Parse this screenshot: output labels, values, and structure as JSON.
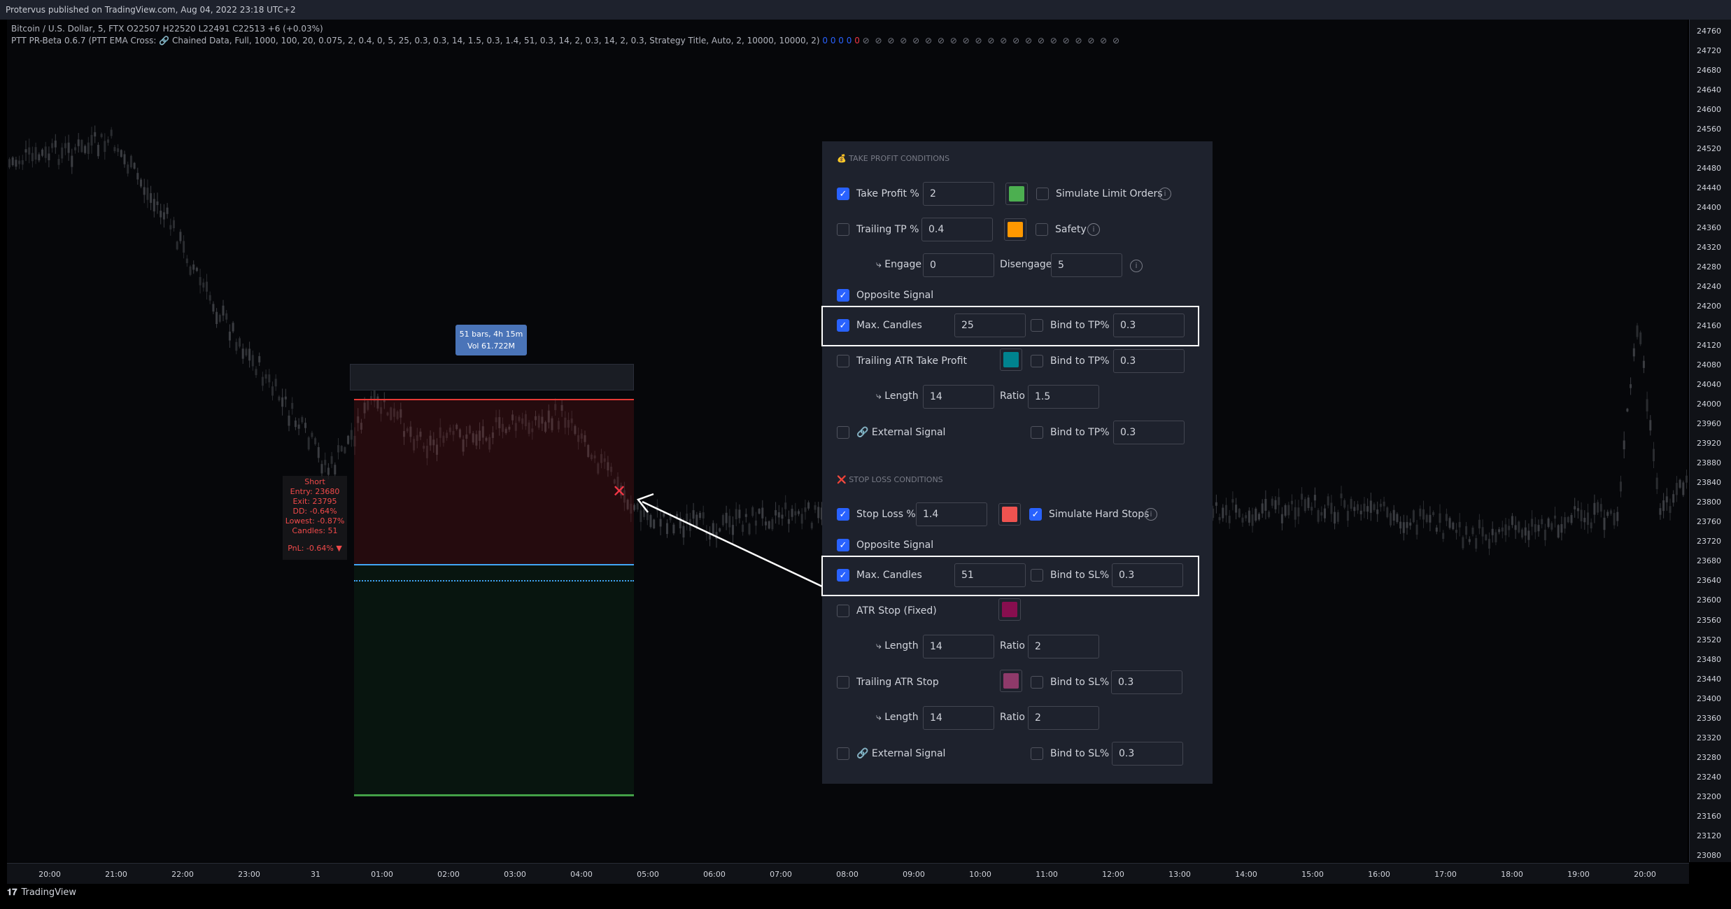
{
  "header": {
    "published": "Protervus published on TradingView.com, Aug 04, 2022 23:18 UTC+2",
    "symbol_line": "Bitcoin / U.S. Dollar, 5, FTX  O22507  H22520  L22491  C22513  +6 (+0.03%)",
    "indicator_line": "PTT PR-Beta 0.6.7 (PTT EMA Cross: 🔗 Chained Data, Full, 1000, 100, 20, 0.075, 2, 0.4, 0, 5, 25, 0.3, 0.3, 14, 1.5, 0.3, 1.4, 51, 0.3, 14, 2, 0.3, 14, 2, 0.3, Strategy Title, Auto, 2, 10000, 10000, 2)",
    "indicator_values": "0 0 0 0",
    "indicator_red": "0",
    "indicator_circles": "⊘ ⊘ ⊘ ⊘ ⊘ ⊘ ⊘ ⊘ ⊘ ⊘ ⊘ ⊘ ⊘ ⊘ ⊘ ⊘ ⊘ ⊘ ⊘ ⊘ ⊘"
  },
  "price_axis": [
    "24760",
    "24720",
    "24680",
    "24640",
    "24600",
    "24560",
    "24520",
    "24480",
    "24440",
    "24400",
    "24360",
    "24320",
    "24280",
    "24240",
    "24200",
    "24160",
    "24120",
    "24080",
    "24040",
    "24000",
    "23960",
    "23920",
    "23880",
    "23840",
    "23800",
    "23760",
    "23720",
    "23680",
    "23640",
    "23600",
    "23560",
    "23520",
    "23480",
    "23440",
    "23400",
    "23360",
    "23320",
    "23280",
    "23240",
    "23200",
    "23160",
    "23120",
    "23080"
  ],
  "time_axis": [
    "20:00",
    "21:00",
    "22:00",
    "23:00",
    "31",
    "01:00",
    "02:00",
    "03:00",
    "04:00",
    "05:00",
    "06:00",
    "07:00",
    "08:00",
    "09:00",
    "10:00",
    "11:00",
    "12:00",
    "13:00",
    "14:00",
    "15:00",
    "16:00",
    "17:00",
    "18:00",
    "19:00",
    "20:00"
  ],
  "brand": "TradingView",
  "measure": {
    "bars": "51 bars, 4h 15m",
    "vol": "Vol 61.722M"
  },
  "trade": {
    "side": "Short",
    "entry": "Entry: 23680",
    "exit": "Exit: 23795",
    "dd": "DD: -0.64%",
    "lowest": "Lowest: -0.87%",
    "candles": "Candles: 51",
    "pnl": "PnL: -0.64% ▼",
    "exit_marker": "✕"
  },
  "panel": {
    "tp_title": "💰 TAKE PROFIT CONDITIONS",
    "sl_title": "❌ STOP LOSS CONDITIONS",
    "take_profit": {
      "label": "Take Profit %",
      "value": "2",
      "checked": true,
      "color": "#4caf50",
      "limit_label": "Simulate Limit Orders"
    },
    "trailing_tp": {
      "label": "Trailing TP %",
      "value": "0.4",
      "checked": false,
      "color": "#ff9800",
      "safety_label": "Safety"
    },
    "engage": {
      "label": "⤷ Engage",
      "value": "0",
      "dis_label": "Disengage",
      "dis_value": "5"
    },
    "opposite_tp": {
      "label": "Opposite Signal",
      "checked": true
    },
    "max_candles_tp": {
      "label": "Max. Candles",
      "value": "25",
      "checked": true,
      "bind_label": "Bind to TP%",
      "bind_value": "0.3"
    },
    "trailing_atr_tp": {
      "label": "Trailing ATR Take Profit",
      "checked": false,
      "color": "#00838f",
      "bind_label": "Bind to TP%",
      "bind_value": "0.3"
    },
    "atr_tp_len": {
      "label": "⤷ Length",
      "value": "14",
      "ratio_label": "Ratio",
      "ratio_value": "1.5"
    },
    "ext_tp": {
      "label": "🔗 External Signal",
      "checked": false,
      "bind_label": "Bind to TP%",
      "bind_value": "0.3"
    },
    "stop_loss": {
      "label": "Stop Loss %",
      "value": "1.4",
      "checked": true,
      "color": "#ef5350",
      "hard_label": "Simulate Hard Stops",
      "hard_checked": true
    },
    "opposite_sl": {
      "label": "Opposite Signal",
      "checked": true
    },
    "max_candles_sl": {
      "label": "Max. Candles",
      "value": "51",
      "checked": true,
      "bind_label": "Bind to SL%",
      "bind_value": "0.3"
    },
    "atr_stop": {
      "label": "ATR Stop (Fixed)",
      "checked": false,
      "color": "#880e4f"
    },
    "atr_stop_len": {
      "label": "⤷ Length",
      "value": "14",
      "ratio_label": "Ratio",
      "ratio_value": "2"
    },
    "trailing_atr_stop": {
      "label": "Trailing ATR Stop",
      "checked": false,
      "color": "#8e3a6a",
      "bind_label": "Bind to SL%",
      "bind_value": "0.3"
    },
    "tr_atr_len": {
      "label": "⤷ Length",
      "value": "14",
      "ratio_label": "Ratio",
      "ratio_value": "2"
    },
    "ext_sl": {
      "label": "🔗 External Signal",
      "checked": false,
      "bind_label": "Bind to SL%",
      "bind_value": "0.3"
    }
  }
}
